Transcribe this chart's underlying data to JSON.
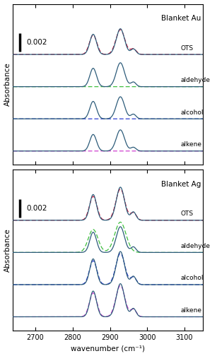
{
  "title_top": "Blanket Au",
  "title_bottom": "Blanket Ag",
  "xlabel": "wavenumber (cm⁻¹)",
  "ylabel": "Absorbance",
  "xlim": [
    2640,
    3150
  ],
  "xticks": [
    2700,
    2800,
    2900,
    3000,
    3100
  ],
  "scale_bar_value": "0.002",
  "scale_bar_absorbance": 0.002,
  "labels": [
    "OTS",
    "aldehyde",
    "alcohol",
    "alkene"
  ],
  "offsets_au": [
    0.0105,
    0.007,
    0.0035,
    0.0
  ],
  "offsets_ag": [
    0.0105,
    0.007,
    0.0035,
    0.0
  ],
  "solid_color": "#2d5c7a",
  "dashed_colors": [
    "#cc1133",
    "#33bb33",
    "#2233cc",
    "#cc33cc"
  ],
  "background_color": "#ffffff",
  "figsize": [
    3.07,
    5.04
  ],
  "dpi": 100
}
